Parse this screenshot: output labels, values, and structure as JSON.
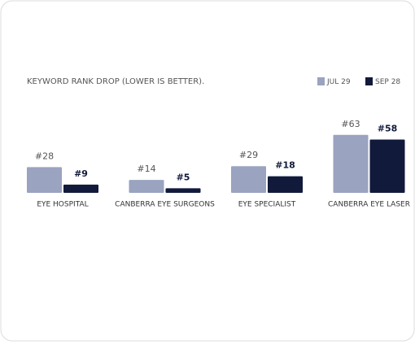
{
  "chart_data": {
    "type": "bar",
    "title": "KEYWORD RANK DROP (LOWER IS BETTER).",
    "categories": [
      "EYE HOSPITAL",
      "CANBERRA EYE SURGEONS",
      "EYE SPECIALIST",
      "CANBERRA EYE LASER"
    ],
    "series": [
      {
        "name": "JUL 29",
        "color": "#9aa3c0",
        "values": [
          28,
          14,
          29,
          63
        ],
        "value_labels": [
          "#28",
          "#14",
          "#29",
          "#63"
        ]
      },
      {
        "name": "SEP 28",
        "color": "#111a3a",
        "values": [
          9,
          5,
          18,
          58
        ],
        "value_labels": [
          "#9",
          "#5",
          "#18",
          "#58"
        ]
      }
    ],
    "legend": "top-right"
  }
}
